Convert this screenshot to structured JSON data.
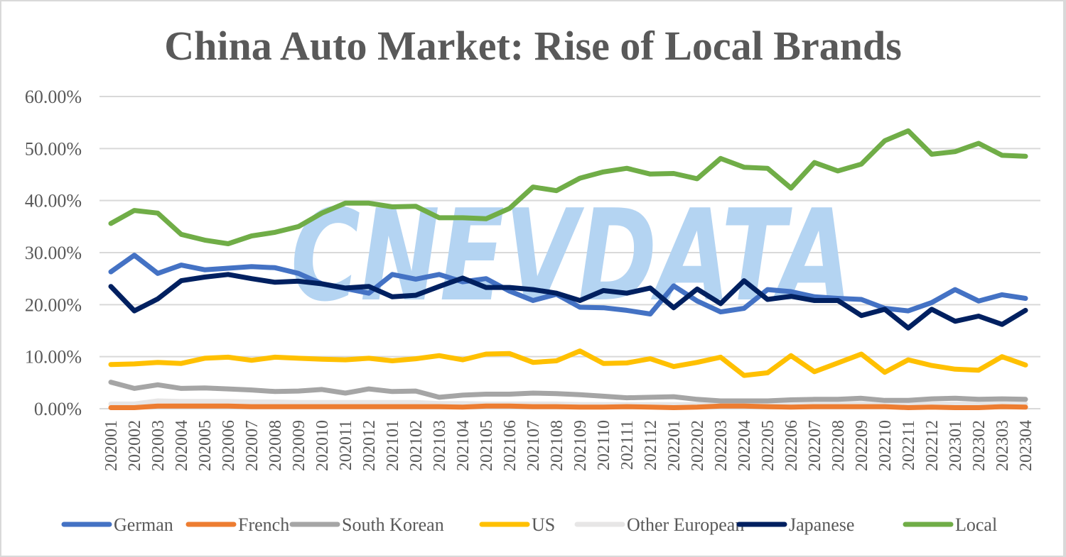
{
  "chart_data": {
    "type": "line",
    "title": "China Auto Market: Rise of Local Brands",
    "xlabel": "",
    "ylabel": "",
    "ylim": [
      0,
      0.6
    ],
    "yticks": [
      "0.00%",
      "10.00%",
      "20.00%",
      "30.00%",
      "40.00%",
      "50.00%",
      "60.00%"
    ],
    "grid": true,
    "legend_position": "bottom",
    "watermark": "CNEVDATA",
    "x": [
      "202001",
      "202002",
      "202003",
      "202004",
      "202005",
      "202006",
      "202007",
      "202008",
      "202009",
      "202010",
      "202011",
      "202012",
      "202101",
      "202102",
      "202103",
      "202104",
      "202105",
      "202106",
      "202107",
      "202108",
      "202109",
      "202110",
      "202111",
      "202112",
      "202201",
      "202202",
      "202203",
      "202204",
      "202205",
      "202206",
      "202207",
      "202208",
      "202209",
      "202210",
      "202211",
      "202212",
      "202301",
      "202302",
      "202303",
      "202304"
    ],
    "series": [
      {
        "name": "German",
        "color": "#4472c4",
        "values": [
          26.3,
          29.5,
          26.0,
          27.6,
          26.7,
          27.0,
          27.3,
          27.1,
          26.0,
          24.0,
          23.1,
          22.2,
          25.8,
          24.9,
          25.8,
          24.4,
          25.0,
          22.6,
          20.8,
          22.0,
          19.5,
          19.4,
          18.9,
          18.2,
          23.6,
          20.7,
          18.6,
          19.3,
          22.9,
          22.5,
          21.5,
          21.2,
          21.0,
          19.3,
          18.8,
          20.4,
          22.9,
          20.7,
          21.9,
          21.2
        ]
      },
      {
        "name": "French",
        "color": "#ed7d31",
        "values": [
          0.2,
          0.2,
          0.5,
          0.5,
          0.5,
          0.5,
          0.4,
          0.4,
          0.4,
          0.4,
          0.4,
          0.4,
          0.4,
          0.4,
          0.4,
          0.3,
          0.5,
          0.5,
          0.4,
          0.4,
          0.3,
          0.3,
          0.4,
          0.3,
          0.2,
          0.3,
          0.5,
          0.5,
          0.4,
          0.3,
          0.4,
          0.4,
          0.4,
          0.4,
          0.2,
          0.3,
          0.2,
          0.2,
          0.4,
          0.3
        ]
      },
      {
        "name": "South Korean",
        "color": "#a5a5a5",
        "values": [
          5.1,
          3.9,
          4.6,
          3.9,
          4.0,
          3.8,
          3.6,
          3.3,
          3.4,
          3.7,
          3.0,
          3.8,
          3.3,
          3.4,
          2.2,
          2.6,
          2.8,
          2.8,
          3.0,
          2.9,
          2.7,
          2.4,
          2.1,
          2.2,
          2.3,
          1.8,
          1.5,
          1.5,
          1.5,
          1.7,
          1.8,
          1.8,
          2.0,
          1.6,
          1.6,
          1.9,
          2.0,
          1.8,
          1.9,
          1.8
        ]
      },
      {
        "name": "US",
        "color": "#ffc000",
        "values": [
          8.5,
          8.6,
          8.9,
          8.7,
          9.7,
          9.9,
          9.3,
          9.9,
          9.7,
          9.5,
          9.4,
          9.7,
          9.2,
          9.6,
          10.2,
          9.4,
          10.5,
          10.6,
          8.9,
          9.2,
          11.1,
          8.7,
          8.8,
          9.6,
          8.1,
          8.9,
          9.9,
          6.4,
          6.9,
          10.2,
          7.1,
          8.8,
          10.5,
          7.0,
          9.4,
          8.3,
          7.6,
          7.4,
          10.0,
          8.4
        ]
      },
      {
        "name": "Other European",
        "color": "#e7e6e6",
        "values": [
          0.9,
          0.9,
          1.5,
          1.4,
          1.4,
          1.4,
          1.3,
          1.3,
          1.2,
          1.2,
          1.2,
          1.2,
          1.2,
          1.2,
          1.0,
          1.0,
          0.9,
          0.9,
          0.9,
          0.9,
          0.8,
          0.8,
          0.8,
          0.8,
          0.8,
          0.8,
          1.0,
          1.0,
          1.0,
          1.0,
          1.0,
          1.0,
          1.0,
          0.9,
          0.9,
          0.9,
          0.9,
          0.9,
          1.0,
          0.9
        ]
      },
      {
        "name": "Japanese",
        "color": "#002060",
        "values": [
          23.5,
          18.8,
          21.1,
          24.6,
          25.3,
          25.8,
          25.0,
          24.3,
          24.5,
          24.0,
          23.2,
          23.5,
          21.5,
          21.8,
          23.5,
          25.1,
          23.3,
          23.3,
          22.9,
          22.2,
          20.8,
          22.7,
          22.2,
          23.2,
          19.4,
          23.0,
          20.2,
          24.6,
          21.0,
          21.6,
          20.8,
          20.8,
          17.9,
          19.1,
          15.5,
          19.1,
          16.8,
          17.8,
          16.2,
          18.9
        ]
      },
      {
        "name": "Local",
        "color": "#70ad47",
        "values": [
          35.6,
          38.1,
          37.6,
          33.5,
          32.4,
          31.7,
          33.2,
          33.9,
          35.0,
          37.6,
          39.5,
          39.5,
          38.8,
          38.9,
          36.7,
          36.7,
          36.5,
          38.5,
          42.6,
          41.9,
          44.3,
          45.5,
          46.2,
          45.1,
          45.2,
          44.2,
          48.1,
          46.4,
          46.2,
          42.4,
          47.3,
          45.7,
          47.0,
          51.5,
          53.4,
          48.9,
          49.4,
          51.0,
          48.7,
          48.5
        ]
      }
    ]
  }
}
